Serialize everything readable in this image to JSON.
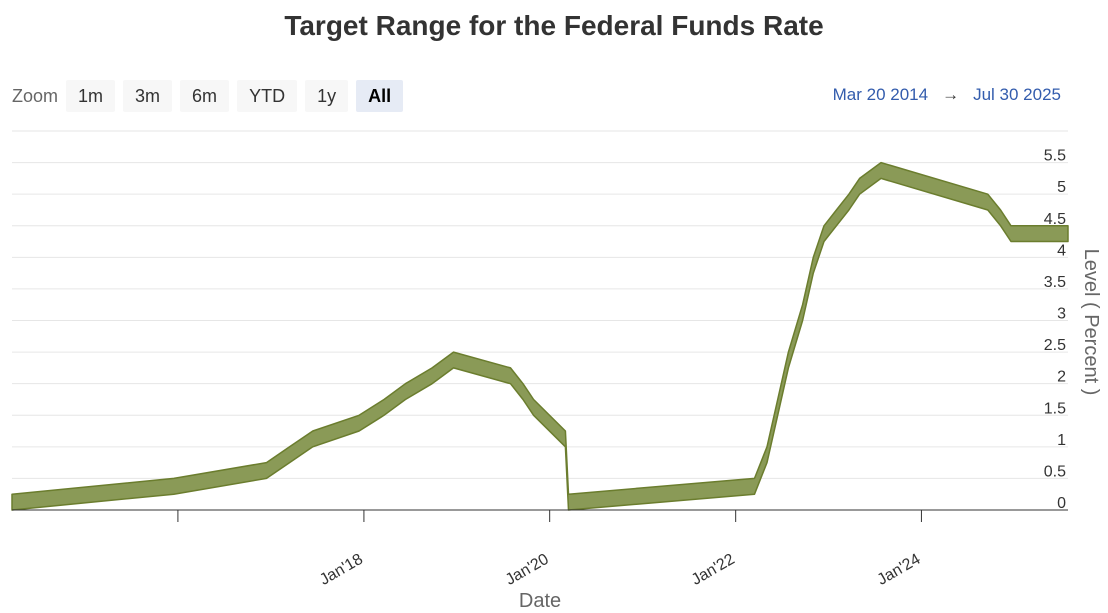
{
  "title": "Target Range for the Federal Funds Rate",
  "zoom": {
    "label": "Zoom",
    "buttons": [
      "1m",
      "3m",
      "6m",
      "YTD",
      "1y",
      "All"
    ],
    "active": "All"
  },
  "range": {
    "from": "Mar 20 2014",
    "arrow": "→",
    "to": "Jul 30 2025"
  },
  "colors": {
    "fill": "#8a9a57",
    "stroke": "#6b7d2e",
    "grid": "#e6e6e6"
  },
  "chart_data": {
    "type": "area",
    "title": "Target Range for the Federal Funds Rate",
    "xlabel": "Date",
    "ylabel": "Level ( Percent )",
    "xlim": [
      "2014-03-20",
      "2025-07-30"
    ],
    "ylim": [
      0,
      6
    ],
    "yticks": [
      0,
      0.5,
      1,
      1.5,
      2,
      2.5,
      3,
      3.5,
      4,
      4.5,
      5,
      5.5
    ],
    "ytick_labels": [
      "0",
      "0.5",
      "1",
      "1.5",
      "2",
      "2.5",
      "3",
      "3.5",
      "4",
      "4.5",
      "5",
      "5.5"
    ],
    "xticks": [
      "2016-01-01",
      "2018-01-01",
      "2020-01-01",
      "2022-01-01",
      "2024-01-01"
    ],
    "xtick_labels": [
      "",
      "Jan'18",
      "Jan'20",
      "Jan'22",
      "Jan'24"
    ],
    "grid": true,
    "series": [
      {
        "name": "Target Range",
        "x": [
          "2014-03-20",
          "2015-12-16",
          "2016-12-14",
          "2017-03-15",
          "2017-06-14",
          "2017-12-13",
          "2018-03-21",
          "2018-06-13",
          "2018-09-26",
          "2018-12-19",
          "2019-07-31",
          "2019-09-18",
          "2019-10-30",
          "2020-03-03",
          "2020-03-15",
          "2022-03-16",
          "2022-05-04",
          "2022-06-15",
          "2022-07-27",
          "2022-09-21",
          "2022-11-02",
          "2022-12-14",
          "2023-02-01",
          "2023-03-22",
          "2023-05-03",
          "2023-07-26",
          "2024-09-18",
          "2024-11-07",
          "2024-12-18",
          "2025-07-30"
        ],
        "lower": [
          0,
          0.25,
          0.5,
          0.75,
          1,
          1.25,
          1.5,
          1.75,
          2,
          2.25,
          2,
          1.75,
          1.5,
          1,
          0,
          0.25,
          0.75,
          1.5,
          2.25,
          3,
          3.75,
          4.25,
          4.5,
          4.75,
          5,
          5.25,
          4.75,
          4.5,
          4.25,
          4.25
        ],
        "upper": [
          0.25,
          0.5,
          0.75,
          1,
          1.25,
          1.5,
          1.75,
          2,
          2.25,
          2.5,
          2.25,
          2,
          1.75,
          1.25,
          0.25,
          0.5,
          1,
          1.75,
          2.5,
          3.25,
          4,
          4.5,
          4.75,
          5,
          5.25,
          5.5,
          5,
          4.75,
          4.5,
          4.5
        ]
      }
    ]
  }
}
